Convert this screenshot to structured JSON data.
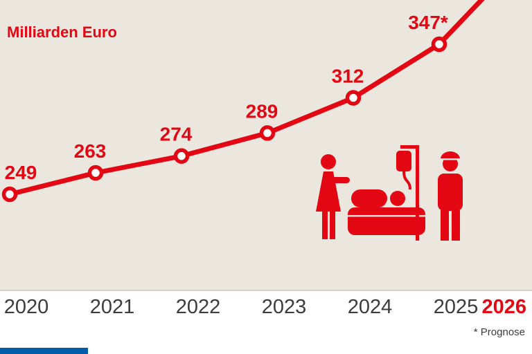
{
  "title": "Milliarden Euro",
  "footnote": "* Prognose",
  "colors": {
    "accent": "#e30613",
    "chart_background": "#ebe7de",
    "tick_text": "#3c3c3b",
    "footer_bar": "#005ca9",
    "point_fill": "#ffffff"
  },
  "icons": [
    "nurse-icon",
    "hospital-bed-icon",
    "iv-drip-icon",
    "worker-icon"
  ],
  "x_axis": {
    "ticks": [
      "2020",
      "2021",
      "2022",
      "2023",
      "2024",
      "2025",
      "2026"
    ],
    "highlight_last": true
  },
  "chart_data": {
    "type": "line",
    "title": "Milliarden Euro",
    "ylabel": "Milliarden Euro",
    "x": [
      "2020",
      "2021",
      "2022",
      "2023",
      "2024",
      "2025",
      "2026"
    ],
    "values": [
      249,
      263,
      274,
      289,
      312,
      347,
      null
    ],
    "point_labels": [
      "249",
      "263",
      "274",
      "289",
      "312",
      "347*",
      ""
    ],
    "ylim": [
      235,
      360
    ],
    "grid": false,
    "legend": "none",
    "series_color": "#e30613",
    "marker": "open-circle",
    "annotations": [
      "* Prognose",
      "Line for 2026 continues upward off the top of the chart, value not shown"
    ]
  }
}
